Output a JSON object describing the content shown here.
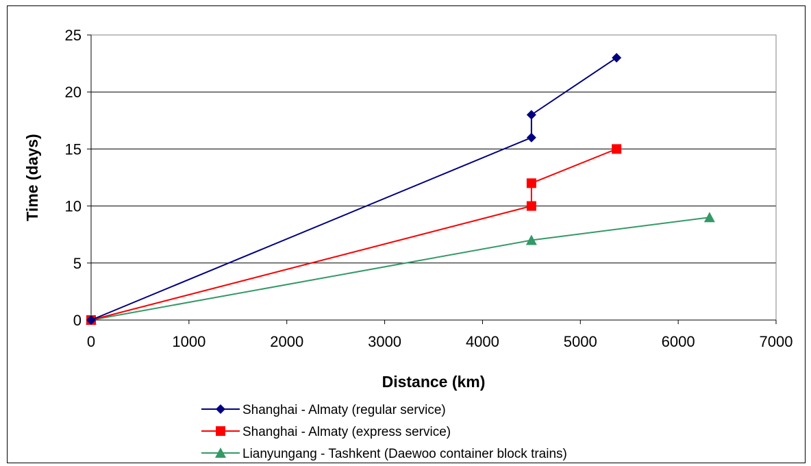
{
  "chart_data": {
    "type": "line",
    "title": "",
    "xlabel": "Distance (km)",
    "ylabel": "Time (days)",
    "xlim": [
      0,
      7000
    ],
    "ylim": [
      0,
      25
    ],
    "xticks": [
      0,
      1000,
      2000,
      3000,
      4000,
      5000,
      6000,
      7000
    ],
    "yticks": [
      0,
      5,
      10,
      15,
      20,
      25
    ],
    "grid": "horizontal",
    "legend_position": "bottom",
    "series": [
      {
        "name": "Shanghai - Almaty (regular service)",
        "color": "#000080",
        "marker": "diamond",
        "points": [
          [
            0,
            0
          ],
          [
            4500,
            16
          ],
          [
            4500,
            18
          ],
          [
            5370,
            23
          ]
        ]
      },
      {
        "name": "Shanghai - Almaty (express service)",
        "color": "#ff0000",
        "marker": "square",
        "points": [
          [
            0,
            0
          ],
          [
            4500,
            10
          ],
          [
            4500,
            12
          ],
          [
            5370,
            15
          ]
        ]
      },
      {
        "name": "Lianyungang - Tashkent (Daewoo container block trains)",
        "color": "#339966",
        "marker": "triangle",
        "points": [
          [
            0,
            0
          ],
          [
            4500,
            7
          ],
          [
            6320,
            9
          ]
        ]
      }
    ]
  }
}
